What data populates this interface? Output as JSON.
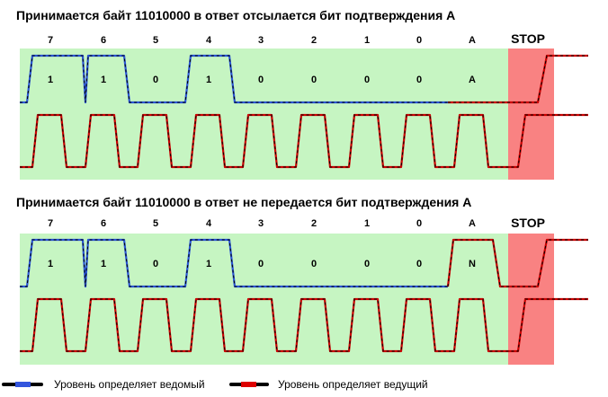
{
  "colors": {
    "green_band": "#c6f5c2",
    "stop_band": "#f98282",
    "slave_wave": "#2a55d6",
    "master_wave": "#cc0000",
    "dash": "#000000"
  },
  "panels": [
    {
      "title": "Принимается байт 11010000 в ответ отсылается бит подтверждения А",
      "bit_labels": [
        "7",
        "6",
        "5",
        "4",
        "3",
        "2",
        "1",
        "0",
        "A"
      ],
      "stop_label": "STOP",
      "data_values": [
        "1",
        "1",
        "0",
        "1",
        "0",
        "0",
        "0",
        "0",
        "A"
      ],
      "bit_levels": [
        1,
        1,
        0,
        1,
        0,
        0,
        0,
        0,
        0
      ],
      "ack_bit_driven_by": "slave"
    },
    {
      "title": "Принимается байт 11010000 в ответ не передается бит подтверждения А",
      "bit_labels": [
        "7",
        "6",
        "5",
        "4",
        "3",
        "2",
        "1",
        "0",
        "A"
      ],
      "stop_label": "STOP",
      "data_values": [
        "1",
        "1",
        "0",
        "1",
        "0",
        "0",
        "0",
        "0",
        "N"
      ],
      "bit_levels": [
        1,
        1,
        0,
        1,
        0,
        0,
        0,
        0,
        1
      ],
      "ack_bit_driven_by": "master"
    }
  ],
  "legend": {
    "slave_label": "Уровень определяет ведомый",
    "master_label": "Уровень определяет ведущий"
  }
}
